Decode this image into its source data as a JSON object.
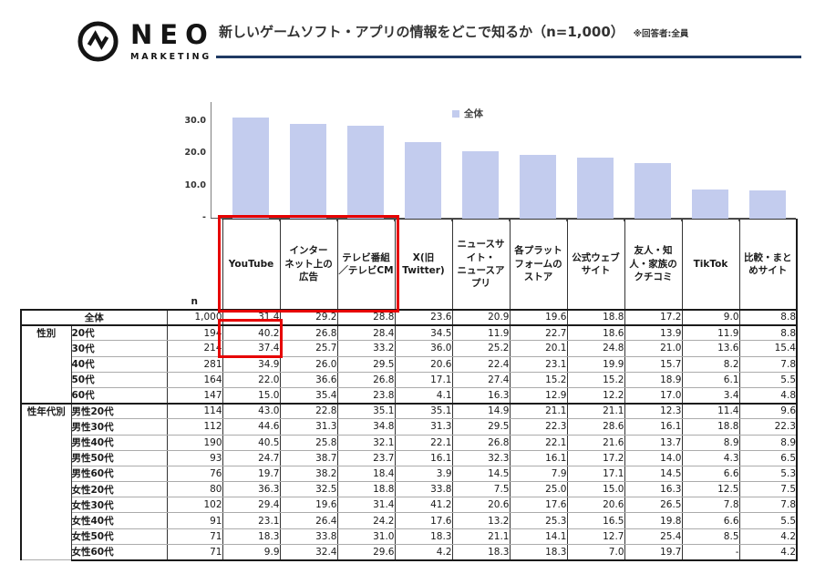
{
  "header": {
    "logo_text": "NEO",
    "logo_subtext": "MARKETING",
    "title": "新しいゲームソフト・アプリの情報をどこで知るか（n=1,000）",
    "note": "※回答者:全員",
    "underline_color": "#203A63"
  },
  "chart_data": {
    "type": "bar",
    "title": "新しいゲームソフト・アプリの情報をどこで知るか（n=1,000）",
    "legend": [
      {
        "name": "全体",
        "color": "#C3CCEE"
      }
    ],
    "categories": [
      "YouTube",
      "インターネット上の広告",
      "テレビ番組／テレビCM",
      "X(旧Twitter)",
      "ニュースサイト・ニュースアプリ",
      "各プラットフォームのストア",
      "公式ウェブサイト",
      "友人・知人・家族のクチコミ",
      "TikTok",
      "比較・まとめサイト"
    ],
    "values": [
      31.4,
      29.2,
      28.8,
      23.6,
      20.9,
      19.6,
      18.8,
      17.2,
      9.0,
      8.8
    ],
    "ylim": [
      0,
      36
    ],
    "yticks": [
      {
        "label": "30.0",
        "value": 30
      },
      {
        "label": "20.0",
        "value": 20
      },
      {
        "label": "10.0",
        "value": 10
      },
      {
        "label": "-",
        "value": 0
      }
    ],
    "grid": false,
    "legend_position": "top-center"
  },
  "table": {
    "n_label": "n",
    "columns": [
      "YouTube",
      "インター\nネット上の\n広告",
      "テレビ番組\n／テレビCM",
      "X(旧\nTwitter)",
      "ニュースサ\nイト・\nニュースア\nプリ",
      "各プラット\nフォームの\nストア",
      "公式ウェブ\nサイト",
      "友人・知\n人・家族の\nクチコミ",
      "TikTok",
      "比較・まと\nめサイト"
    ],
    "rows": [
      {
        "label": "全体",
        "merged": true,
        "n": "1,000",
        "values": [
          "31.4",
          "29.2",
          "28.8",
          "23.6",
          "20.9",
          "19.6",
          "18.8",
          "17.2",
          "9.0",
          "8.8"
        ]
      },
      {
        "group": "性別",
        "group_span": 5,
        "label": "20代",
        "n": "194",
        "values": [
          "40.2",
          "26.8",
          "28.4",
          "34.5",
          "11.9",
          "22.7",
          "18.6",
          "13.9",
          "11.9",
          "8.8"
        ]
      },
      {
        "label": "30代",
        "n": "214",
        "values": [
          "37.4",
          "25.7",
          "33.2",
          "36.0",
          "25.2",
          "20.1",
          "24.8",
          "21.0",
          "13.6",
          "15.4"
        ]
      },
      {
        "label": "40代",
        "n": "281",
        "values": [
          "34.9",
          "26.0",
          "29.5",
          "20.6",
          "22.4",
          "23.1",
          "19.9",
          "15.7",
          "8.2",
          "7.8"
        ]
      },
      {
        "label": "50代",
        "n": "164",
        "values": [
          "22.0",
          "36.6",
          "26.8",
          "17.1",
          "27.4",
          "15.2",
          "15.2",
          "18.9",
          "6.1",
          "5.5"
        ]
      },
      {
        "label": "60代",
        "n": "147",
        "values": [
          "15.0",
          "35.4",
          "23.8",
          "4.1",
          "16.3",
          "12.9",
          "12.2",
          "17.0",
          "3.4",
          "4.8"
        ]
      },
      {
        "group": "性年代別",
        "group_span": 10,
        "label": "男性20代",
        "n": "114",
        "values": [
          "43.0",
          "22.8",
          "35.1",
          "35.1",
          "14.9",
          "21.1",
          "21.1",
          "12.3",
          "11.4",
          "9.6"
        ]
      },
      {
        "label": "男性30代",
        "n": "112",
        "values": [
          "44.6",
          "31.3",
          "34.8",
          "31.3",
          "29.5",
          "22.3",
          "28.6",
          "16.1",
          "18.8",
          "22.3"
        ]
      },
      {
        "label": "男性40代",
        "n": "190",
        "values": [
          "40.5",
          "25.8",
          "32.1",
          "22.1",
          "26.8",
          "22.1",
          "21.6",
          "13.7",
          "8.9",
          "8.9"
        ]
      },
      {
        "label": "男性50代",
        "n": "93",
        "values": [
          "24.7",
          "38.7",
          "23.7",
          "16.1",
          "32.3",
          "16.1",
          "17.2",
          "14.0",
          "4.3",
          "6.5"
        ]
      },
      {
        "label": "男性60代",
        "n": "76",
        "values": [
          "19.7",
          "38.2",
          "18.4",
          "3.9",
          "14.5",
          "7.9",
          "17.1",
          "14.5",
          "6.6",
          "5.3"
        ]
      },
      {
        "label": "女性20代",
        "n": "80",
        "values": [
          "36.3",
          "32.5",
          "18.8",
          "33.8",
          "7.5",
          "25.0",
          "15.0",
          "16.3",
          "12.5",
          "7.5"
        ]
      },
      {
        "label": "女性30代",
        "n": "102",
        "values": [
          "29.4",
          "19.6",
          "31.4",
          "41.2",
          "20.6",
          "17.6",
          "20.6",
          "26.5",
          "7.8",
          "7.8"
        ]
      },
      {
        "label": "女性40代",
        "n": "91",
        "values": [
          "23.1",
          "26.4",
          "24.2",
          "17.6",
          "13.2",
          "25.3",
          "16.5",
          "19.8",
          "6.6",
          "5.5"
        ]
      },
      {
        "label": "女性50代",
        "n": "71",
        "values": [
          "18.3",
          "33.8",
          "31.0",
          "18.3",
          "21.1",
          "14.1",
          "12.7",
          "25.4",
          "8.5",
          "4.2"
        ]
      },
      {
        "label": "女性60代",
        "n": "71",
        "values": [
          "9.9",
          "32.4",
          "29.6",
          "4.2",
          "18.3",
          "18.3",
          "7.0",
          "19.7",
          "-",
          "4.2"
        ]
      }
    ]
  },
  "highlights": {
    "color": "#E60000",
    "header_columns": [
      "YouTube",
      "インターネット上の広告",
      "テレビ番組／テレビCM"
    ],
    "highlighted_cells": [
      {
        "row": "20代",
        "column": "YouTube",
        "value": "40.2"
      },
      {
        "row": "30代",
        "column": "YouTube",
        "value": "37.4"
      }
    ]
  }
}
